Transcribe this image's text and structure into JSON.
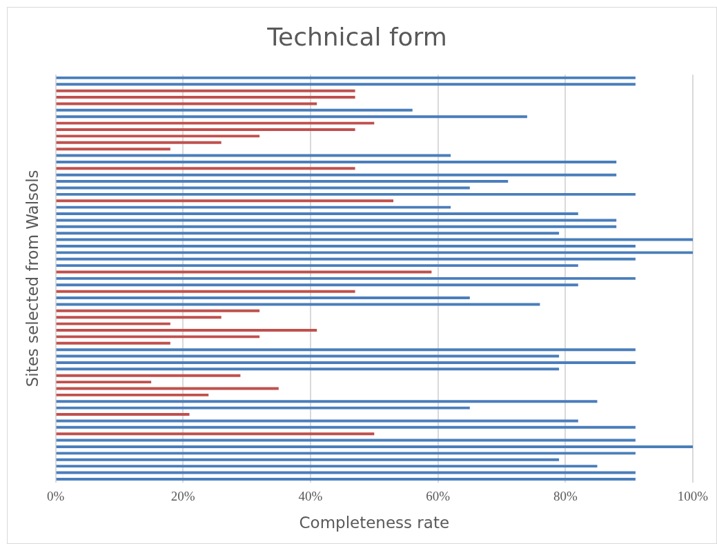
{
  "chart_data": {
    "type": "bar",
    "orientation": "horizontal",
    "title": "Technical form",
    "xlabel": "Completeness rate",
    "ylabel": "Sites selected from Walsols",
    "categories": [
      null,
      null,
      null,
      null,
      null,
      null,
      null,
      null,
      null,
      null,
      null,
      null,
      null,
      null,
      null,
      null,
      null,
      null,
      null,
      null,
      null,
      null,
      null,
      null,
      null,
      null,
      null,
      null,
      null,
      null,
      null,
      null,
      null,
      null,
      null,
      null,
      null,
      null,
      null,
      null,
      null,
      null,
      null,
      null,
      null,
      null,
      null,
      null,
      null,
      null,
      null,
      null,
      null,
      null,
      null,
      null,
      null,
      null,
      null,
      null,
      null,
      null,
      null
    ],
    "values": [
      91,
      91,
      47,
      47,
      41,
      56,
      74,
      50,
      47,
      32,
      26,
      18,
      62,
      88,
      47,
      88,
      71,
      65,
      91,
      53,
      62,
      82,
      88,
      88,
      79,
      100,
      91,
      100,
      91,
      82,
      59,
      91,
      82,
      47,
      65,
      76,
      32,
      26,
      18,
      41,
      32,
      18,
      91,
      79,
      91,
      79,
      29,
      15,
      35,
      24,
      85,
      65,
      21,
      82,
      91,
      50,
      91,
      100,
      91,
      79,
      85,
      91,
      91
    ],
    "colors": [
      "#4a7ebb",
      "#4a7ebb",
      "#c0504d",
      "#c0504d",
      "#c0504d",
      "#4a7ebb",
      "#4a7ebb",
      "#c0504d",
      "#c0504d",
      "#c0504d",
      "#c0504d",
      "#c0504d",
      "#4a7ebb",
      "#4a7ebb",
      "#c0504d",
      "#4a7ebb",
      "#4a7ebb",
      "#4a7ebb",
      "#4a7ebb",
      "#c0504d",
      "#4a7ebb",
      "#4a7ebb",
      "#4a7ebb",
      "#4a7ebb",
      "#4a7ebb",
      "#4a7ebb",
      "#4a7ebb",
      "#4a7ebb",
      "#4a7ebb",
      "#4a7ebb",
      "#c0504d",
      "#4a7ebb",
      "#4a7ebb",
      "#c0504d",
      "#4a7ebb",
      "#4a7ebb",
      "#c0504d",
      "#c0504d",
      "#c0504d",
      "#c0504d",
      "#c0504d",
      "#c0504d",
      "#4a7ebb",
      "#4a7ebb",
      "#4a7ebb",
      "#4a7ebb",
      "#c0504d",
      "#c0504d",
      "#c0504d",
      "#c0504d",
      "#4a7ebb",
      "#4a7ebb",
      "#c0504d",
      "#4a7ebb",
      "#4a7ebb",
      "#c0504d",
      "#4a7ebb",
      "#4a7ebb",
      "#4a7ebb",
      "#4a7ebb",
      "#4a7ebb",
      "#4a7ebb",
      "#4a7ebb"
    ],
    "xlim": [
      0,
      100
    ],
    "xticks": [
      {
        "value": 0,
        "label": "0%"
      },
      {
        "value": 20,
        "label": "20%"
      },
      {
        "value": 40,
        "label": "40%"
      },
      {
        "value": 60,
        "label": "60%"
      },
      {
        "value": 80,
        "label": "80%"
      },
      {
        "value": 100,
        "label": "100%"
      }
    ],
    "grid": "x",
    "legend": false
  }
}
